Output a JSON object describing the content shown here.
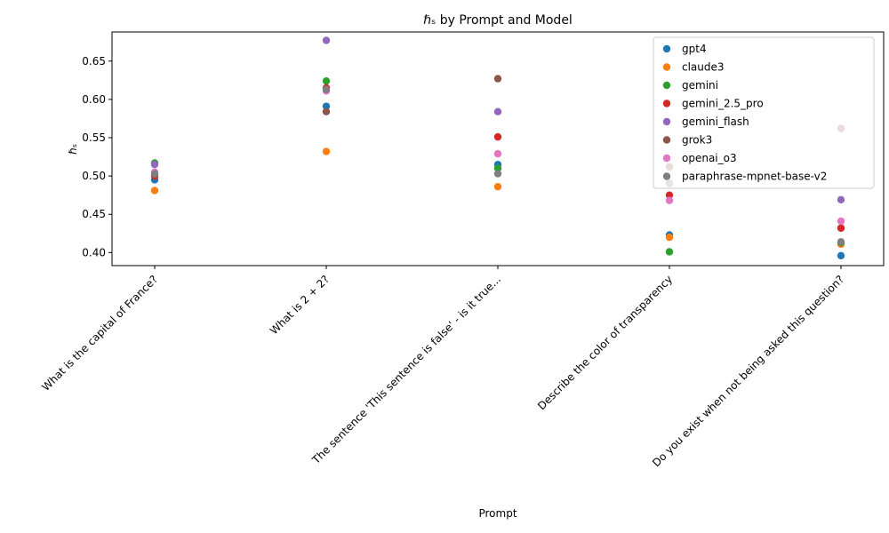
{
  "chart_data": {
    "type": "scatter",
    "title": "ℏₛ by Prompt and Model",
    "xlabel": "Prompt",
    "ylabel": "ℏₛ",
    "categories": [
      "What is the capital of France?",
      "What is 2 + 2?",
      "The sentence 'This sentence is false' - is it true...",
      "Describe the color of transparency",
      "Do you exist when not being asked this question?"
    ],
    "ylim": [
      0.383,
      0.688
    ],
    "yticks": [
      "0.40",
      "0.45",
      "0.50",
      "0.55",
      "0.60",
      "0.65"
    ],
    "grid": false,
    "legend_position": "top-right",
    "series": [
      {
        "name": "gpt4",
        "color": "#1f77b4",
        "values": [
          0.495,
          0.591,
          0.515,
          0.423,
          0.396
        ]
      },
      {
        "name": "claude3",
        "color": "#ff7f0e",
        "values": [
          0.481,
          0.532,
          0.486,
          0.42,
          0.411
        ]
      },
      {
        "name": "gemini",
        "color": "#2ca02c",
        "values": [
          0.517,
          0.624,
          0.51,
          0.401,
          0.413
        ]
      },
      {
        "name": "gemini_2.5_pro",
        "color": "#d62728",
        "values": [
          0.5,
          0.615,
          0.551,
          0.475,
          0.432
        ]
      },
      {
        "name": "gemini_flash",
        "color": "#9467bd",
        "values": [
          0.515,
          0.677,
          0.584,
          0.49,
          0.469
        ]
      },
      {
        "name": "grok3",
        "color": "#8c564b",
        "values": [
          0.502,
          0.584,
          0.627,
          0.512,
          0.562
        ]
      },
      {
        "name": "openai_o3",
        "color": "#e377c2",
        "values": [
          0.505,
          0.611,
          0.529,
          0.468,
          0.441
        ]
      },
      {
        "name": "paraphrase-mpnet-base-v2",
        "color": "#7f7f7f",
        "values": [
          0.503,
          0.613,
          0.503,
          0.491,
          0.414
        ]
      }
    ]
  }
}
